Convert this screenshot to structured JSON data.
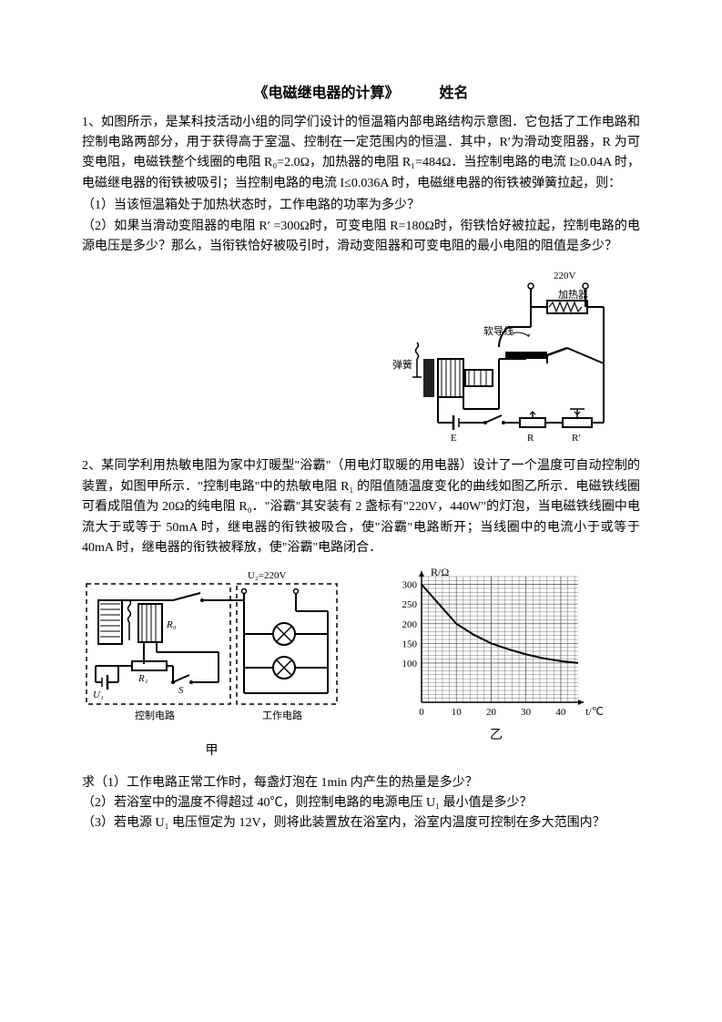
{
  "title": "《电磁继电器的计算》",
  "name_label": "姓名",
  "problem1": {
    "intro": "1、如图所示，是某科技活动小组的同学们设计的恒温箱内部电路结构示意图．它包括了工作电路和控制电路两部分，用于获得高于室温、控制在一定范围内的恒温．其中，R′为滑动变阻器，R 为可变电阻，电磁铁整个线圈的电阻 R₀=2.0Ω，加热器的电阻 R₁=484Ω．当控制电路的电流 I≥0.04A 时，电磁继电器的衔铁被吸引；当控制电路的电流 I≤0.036A 时，电磁继电器的衔铁被弹簧拉起，则：",
    "q1": "（1）当该恒温箱处于加热状态时，工作电路的功率为多少？",
    "q2": "（2）如果当滑动变阻器的电阻 R′ =300Ω时，可变电阻 R=180Ω时，衔铁恰好被拉起，控制电路的电源电压是多少？那么，当衔铁恰好被吸引时，滑动变阻器和可变电阻的最小电阻的阻值是多少？",
    "circuit": {
      "voltage_label": "220V",
      "heater_label": "加热器",
      "wire_label": "软导线",
      "spring_label": "弹簧",
      "battery_label": "E",
      "R_label": "R",
      "Rprime_label": "R′"
    }
  },
  "problem2": {
    "intro": "2、某同学利用热敏电阻为家中灯暖型\"浴霸\"（用电灯取暖的用电器）设计了一个温度可自动控制的装置，如图甲所示．\"控制电路\"中的热敏电阻 R₁ 的阻值随温度变化的曲线如图乙所示．电磁铁线圈可看成阻值为 20Ω的纯电阻 R₀．\"浴霸\"其安装有 2 盏标有\"220V，440W\"的灯泡，当电磁铁线圈中电流大于或等于 50mA 时，继电器的衔铁被吸合，使\"浴霸\"电路断开；当线圈中的电流小于或等于 40mA 时，继电器的衔铁被释放，使\"浴霸\"电路闭合．",
    "circuit_jia": {
      "U2_label": "U₂=220V",
      "R0_label": "R₀",
      "R1_label": "R₁",
      "U1_label": "U₁",
      "S_label": "S",
      "control_label": "控制电路",
      "work_label": "工作电路",
      "fig_label": "甲"
    },
    "chart_yi": {
      "type": "line",
      "y_axis_label": "R/Ω",
      "x_axis_label": "t/℃",
      "fig_label": "乙",
      "xlim": [
        0,
        45
      ],
      "ylim": [
        0,
        320
      ],
      "xticks": [
        0,
        10,
        20,
        30,
        40
      ],
      "yticks": [
        100,
        150,
        200,
        250,
        300
      ],
      "xtick_labels": [
        "0",
        "10",
        "20",
        "30",
        "40"
      ],
      "ytick_labels": [
        "100",
        "150",
        "200",
        "250",
        "300"
      ],
      "background_color": "#ffffff",
      "grid_color": "#555555",
      "line_color": "#000000",
      "line_width": 2,
      "data_points": [
        {
          "t": 0,
          "R": 300
        },
        {
          "t": 5,
          "R": 250
        },
        {
          "t": 10,
          "R": 200
        },
        {
          "t": 15,
          "R": 172
        },
        {
          "t": 20,
          "R": 150
        },
        {
          "t": 25,
          "R": 135
        },
        {
          "t": 30,
          "R": 122
        },
        {
          "t": 35,
          "R": 112
        },
        {
          "t": 40,
          "R": 105
        },
        {
          "t": 45,
          "R": 100
        }
      ]
    },
    "q1": "求（1）工作电路正常工作时，每盏灯泡在 1min 内产生的热量是多少？",
    "q2": "（2）若浴室中的温度不得超过 40℃，则控制电路的电源电压 U₁ 最小值是多少？",
    "q3": "（3）若电源 U₁ 电压恒定为 12V，则将此装置放在浴室内，浴室内温度可控制在多大范围内？"
  }
}
